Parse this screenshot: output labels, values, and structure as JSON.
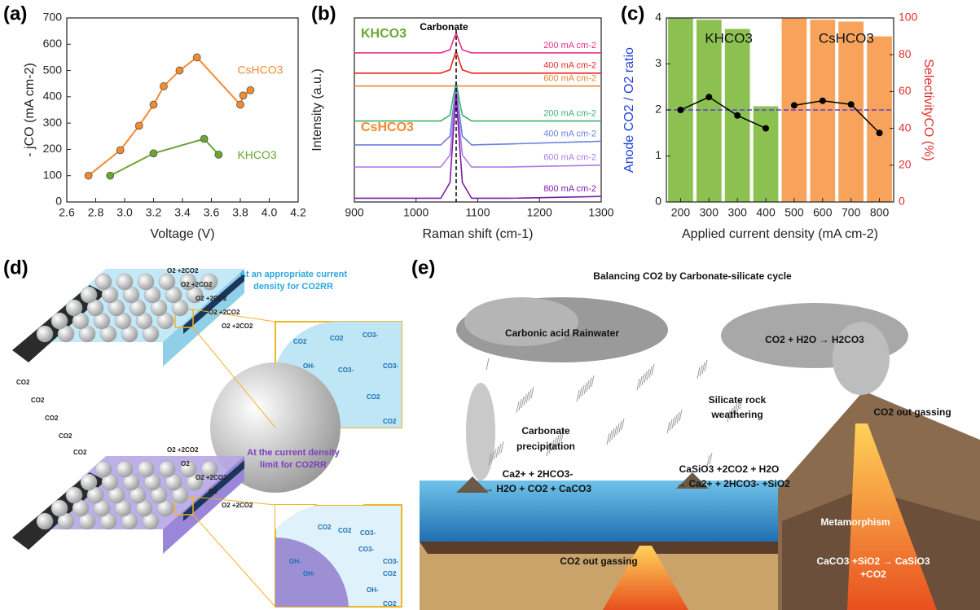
{
  "panel_labels": [
    "(a)",
    "(b)",
    "(c)",
    "(d)",
    "(e)"
  ],
  "chart_data": [
    {
      "type": "line",
      "xlabel": "Voltage (V)",
      "ylabel": "- jCO (mA cm-2)",
      "xlim": [
        2.6,
        4.2
      ],
      "xticks": [
        2.6,
        2.8,
        {
          "value": 3,
          "label": "3.0"
        },
        3.2,
        3.4,
        3.6,
        3.8,
        {
          "value": 4,
          "label": "4.0"
        },
        4.2
      ],
      "ylim": [
        0,
        700
      ],
      "yticks": [
        0,
        100,
        200,
        300,
        400,
        500,
        600,
        700
      ],
      "series": [
        {
          "name": "CsHCO3",
          "color": "#f28a30",
          "x": [
            2.75,
            2.97,
            3.1,
            3.2,
            3.27,
            3.38,
            3.5,
            3.8,
            3.82,
            3.87
          ],
          "values": [
            100,
            197,
            290,
            370,
            440,
            500,
            550,
            370,
            405,
            425
          ]
        },
        {
          "name": "KHCO3",
          "color": "#6aa532",
          "x": [
            2.9,
            3.2,
            3.55,
            3.65
          ],
          "values": [
            100,
            185,
            240,
            180
          ]
        }
      ]
    },
    {
      "type": "spectrum",
      "xlabel": "Raman shift (cm-1)",
      "ylabel": "Intensity (a.u.)",
      "xlim": [
        900,
        1300
      ],
      "xticks": [
        900,
        1000,
        1100,
        1200,
        1300
      ],
      "ylim": [
        0,
        10
      ],
      "vline": 1065,
      "annotations": [
        {
          "text": "KHCO3",
          "color": "#6aa532"
        },
        {
          "text": "CsHCO3",
          "color": "#f28a30"
        },
        {
          "text": "Carbonate",
          "color": "#000000"
        }
      ],
      "x": [
        900,
        1000,
        1040,
        1055,
        1060,
        1065,
        1070,
        1075,
        1090,
        1150,
        1300
      ],
      "series": [
        {
          "name": "200 mA cm-2",
          "color": "#e8308a",
          "values": [
            8.1,
            8.1,
            8.1,
            8.27,
            8.76,
            9.2,
            8.7,
            8.27,
            8.1,
            8.1,
            8.1
          ]
        },
        {
          "name": "400 mA cm-2",
          "color": "#e8281e",
          "values": [
            7,
            7,
            7,
            7.18,
            7.72,
            8.2,
            7.66,
            7.18,
            7,
            7,
            7
          ]
        },
        {
          "name": "600 mA cm-2",
          "color": "#f07f2a",
          "values": [
            6.3,
            6.3,
            6.3,
            6.3,
            6.3,
            6.3,
            6.3,
            6.3,
            6.3,
            6.3,
            6.3
          ]
        },
        {
          "name": "200 mA cm-2",
          "color": "#3cb371",
          "values": [
            4.4,
            4.4,
            4.4,
            4.72,
            5.66,
            6.5,
            5.56,
            4.72,
            4.4,
            4.4,
            4.4
          ]
        },
        {
          "name": "400 mA cm-2",
          "color": "#6a7fe0",
          "values": [
            3.1,
            3.1,
            3.1,
            3.58,
            5.02,
            6.3,
            4.86,
            3.58,
            3.1,
            3.15,
            3.3
          ]
        },
        {
          "name": "600 mA cm-2",
          "color": "#b07ae8",
          "values": [
            1.9,
            1.9,
            1.9,
            2.55,
            4.48,
            6.2,
            4.27,
            2.55,
            1.9,
            1.9,
            2
          ]
        },
        {
          "name": "800 mA cm-2",
          "color": "#7a1fa8",
          "values": [
            0.2,
            0.2,
            0.2,
            1.06,
            3.62,
            5.9,
            3.34,
            1.06,
            0.2,
            0.2,
            0.3
          ]
        }
      ]
    },
    {
      "type": "combo",
      "xlabel": "Applied current density (mA cm-2)",
      "ylabel": "Anode CO2 / O2 ratio",
      "y2label": "SelectivityCO (%)",
      "y_color": "#1f3fd8",
      "y2_color": "#e0302a",
      "categories": [
        "200",
        "300",
        "300",
        "400",
        "500",
        "600",
        "700",
        "800"
      ],
      "ylim": [
        0,
        4
      ],
      "yticks": [
        0,
        1,
        2,
        3,
        4
      ],
      "y2lim": [
        0,
        100
      ],
      "y2ticks": [
        0,
        20,
        40,
        60,
        80,
        100
      ],
      "hline": 2,
      "hline_color": "#5b3fd6",
      "series": [
        {
          "name": "KHCO3",
          "color": "#8cc152",
          "axis": "y2",
          "values": [
            100,
            99,
            94,
            52,
            null,
            null,
            null,
            null
          ]
        },
        {
          "name": "CsHCO3",
          "color": "#f7a35c",
          "axis": "y2",
          "values": [
            null,
            null,
            null,
            null,
            100,
            99,
            98,
            90
          ]
        },
        {
          "color": "#000000",
          "axis": "y",
          "values": [
            2.0,
            2.28,
            1.88,
            1.6,
            null,
            null,
            null,
            null
          ]
        },
        {
          "color": "#000000",
          "axis": "y",
          "values": [
            null,
            null,
            null,
            null,
            2.1,
            2.2,
            2.12,
            1.5
          ]
        }
      ]
    }
  ],
  "diagram_d": {
    "top_caption": [
      "At an appropriate  current",
      "density for CO2RR"
    ],
    "bottom_caption": [
      "At the current density",
      "limit for CO2RR"
    ],
    "top_gas": [
      "O2 +2CO2",
      "O2 +2CO2",
      "O2 +2CO2",
      "O2 +2CO2",
      "O2 +2CO2"
    ],
    "bottom_gas": [
      "O2 +2CO2",
      "O2",
      "O2 +2CO2",
      "O2",
      "O2 +2CO2"
    ],
    "inlet": [
      "CO2",
      "CO2",
      "CO2",
      "CO2",
      "CO2"
    ],
    "top_inset": [
      "CO2",
      "CO2",
      "CO3-",
      "OH-",
      "CO3-",
      "CO3-",
      "CO2",
      "CO2"
    ],
    "bottom_inset": [
      "CO2",
      "CO2",
      "CO3-",
      "OH-",
      "OH-",
      "CO3-",
      "CO2",
      "OH-",
      "CO3-",
      "CO2"
    ]
  },
  "diagram_e": {
    "title": "Balancing CO2 by Carbonate-silicate cycle",
    "rain": "Carbonic acid Rainwater",
    "reaction_air": "CO2 + H2O → H2CO3",
    "weathering": [
      "Silicate rock",
      "weathering"
    ],
    "outgas_volcano": "CO2 out gassing",
    "precipitation": [
      "Carbonate",
      "precipitation"
    ],
    "weathering_reaction": [
      "CaSiO3 +2CO2 + H2O",
      "→ Ca2+ + 2HCO3- +SiO2"
    ],
    "precipitation_reaction": [
      "Ca2+ + 2HCO3-",
      "→ H2O + CO2 +  CaCO3"
    ],
    "metamorphism": "Metamorphism",
    "metamorphism_reaction": [
      "CaCO3 +SiO2 → CaSiO3",
      "+CO2"
    ],
    "outgas_ridge": "CO2 out gassing"
  }
}
